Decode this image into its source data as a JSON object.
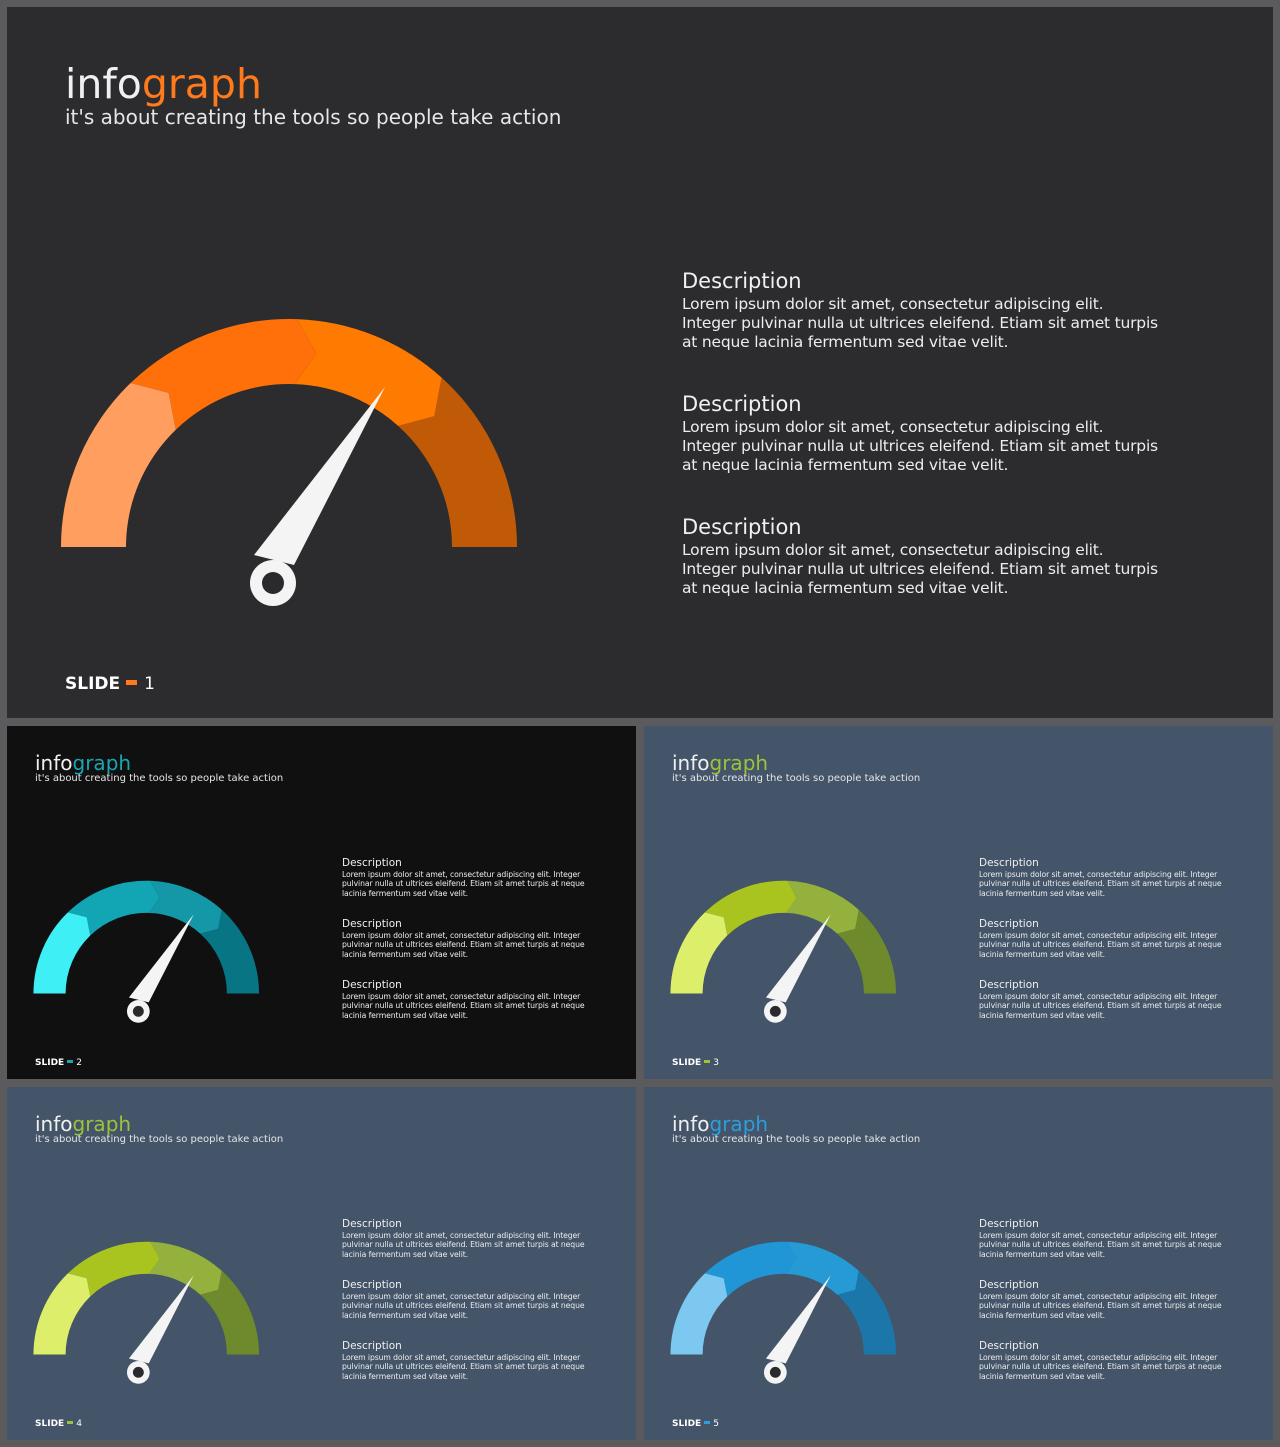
{
  "slides": [
    {
      "brand_prefix": "info",
      "brand_suffix": "graph",
      "tagline": "it's about creating the tools so people take action",
      "accent": "#ff7a1a",
      "gauge_colors": [
        "#ff9e5e",
        "#ff6f0a",
        "#ff7a00",
        "#c05a07"
      ],
      "descriptions": [
        {
          "title": "Description",
          "text": "Lorem ipsum dolor sit amet, consectetur adipiscing elit. Integer pulvinar nulla ut ultrices eleifend. Etiam sit amet turpis at neque lacinia fermentum sed vitae velit."
        },
        {
          "title": "Description",
          "text": "Lorem ipsum dolor sit amet, consectetur adipiscing elit. Integer pulvinar nulla ut ultrices eleifend. Etiam sit amet turpis at neque lacinia fermentum sed vitae velit."
        },
        {
          "title": "Description",
          "text": "Lorem ipsum dolor sit amet, consectetur adipiscing elit. Integer pulvinar nulla ut ultrices eleifend. Etiam sit amet turpis at neque lacinia fermentum sed vitae velit."
        }
      ],
      "footer_label": "SLIDE",
      "footer_number": "1"
    },
    {
      "brand_prefix": "info",
      "brand_suffix": "graph",
      "tagline": "it's about creating the tools so people take action",
      "accent": "#1aa6b0",
      "gauge_colors": [
        "#3ef0f5",
        "#12a6b4",
        "#1497a6",
        "#087585"
      ],
      "descriptions": [
        {
          "title": "Description",
          "text": "Lorem ipsum dolor sit amet, consectetur adipiscing elit. Integer pulvinar nulla ut ultrices eleifend. Etiam sit amet turpis at neque lacinia fermentum sed vitae velit."
        },
        {
          "title": "Description",
          "text": "Lorem ipsum dolor sit amet, consectetur adipiscing elit. Integer pulvinar nulla ut ultrices eleifend. Etiam sit amet turpis at neque lacinia fermentum sed vitae velit."
        },
        {
          "title": "Description",
          "text": "Lorem ipsum dolor sit amet, consectetur adipiscing elit. Integer pulvinar nulla ut ultrices eleifend. Etiam sit amet turpis at neque lacinia fermentum sed vitae velit."
        }
      ],
      "footer_label": "SLIDE",
      "footer_number": "2"
    },
    {
      "brand_prefix": "info",
      "brand_suffix": "graph",
      "tagline": "it's about creating the tools so people take action",
      "accent": "#9cc33a",
      "gauge_colors": [
        "#dcee6a",
        "#a9c41e",
        "#93b13c",
        "#6f8a2c"
      ],
      "descriptions": [
        {
          "title": "Description",
          "text": "Lorem ipsum dolor sit amet, consectetur adipiscing elit. Integer pulvinar nulla ut ultrices eleifend. Etiam sit amet turpis at neque lacinia fermentum sed vitae velit."
        },
        {
          "title": "Description",
          "text": "Lorem ipsum dolor sit amet, consectetur adipiscing elit. Integer pulvinar nulla ut ultrices eleifend. Etiam sit amet turpis at neque lacinia fermentum sed vitae velit."
        },
        {
          "title": "Description",
          "text": "Lorem ipsum dolor sit amet, consectetur adipiscing elit. Integer pulvinar nulla ut ultrices eleifend. Etiam sit amet turpis at neque lacinia fermentum sed vitae velit."
        }
      ],
      "footer_label": "SLIDE",
      "footer_number": "3"
    },
    {
      "brand_prefix": "info",
      "brand_suffix": "graph",
      "tagline": "it's about creating the tools so people take action",
      "accent": "#9cc33a",
      "gauge_colors": [
        "#dcee6a",
        "#a9c41e",
        "#93b13c",
        "#6f8a2c"
      ],
      "descriptions": [
        {
          "title": "Description",
          "text": "Lorem ipsum dolor sit amet, consectetur adipiscing elit. Integer pulvinar nulla ut ultrices eleifend. Etiam sit amet turpis at neque lacinia fermentum sed vitae velit."
        },
        {
          "title": "Description",
          "text": "Lorem ipsum dolor sit amet, consectetur adipiscing elit. Integer pulvinar nulla ut ultrices eleifend. Etiam sit amet turpis at neque lacinia fermentum sed vitae velit."
        },
        {
          "title": "Description",
          "text": "Lorem ipsum dolor sit amet, consectetur adipiscing elit. Integer pulvinar nulla ut ultrices eleifend. Etiam sit amet turpis at neque lacinia fermentum sed vitae velit."
        }
      ],
      "footer_label": "SLIDE",
      "footer_number": "4"
    },
    {
      "brand_prefix": "info",
      "brand_suffix": "graph",
      "tagline": "it's about creating the tools so people take action",
      "accent": "#2b9fdc",
      "gauge_colors": [
        "#7cc8f0",
        "#2196d6",
        "#259ad5",
        "#1b77aa"
      ],
      "descriptions": [
        {
          "title": "Description",
          "text": "Lorem ipsum dolor sit amet, consectetur adipiscing elit. Integer pulvinar nulla ut ultrices eleifend. Etiam sit amet turpis at neque lacinia fermentum sed vitae velit."
        },
        {
          "title": "Description",
          "text": "Lorem ipsum dolor sit amet, consectetur adipiscing elit. Integer pulvinar nulla ut ultrices eleifend. Etiam sit amet turpis at neque lacinia fermentum sed vitae velit."
        },
        {
          "title": "Description",
          "text": "Lorem ipsum dolor sit amet, consectetur adipiscing elit. Integer pulvinar nulla ut ultrices eleifend. Etiam sit amet turpis at neque lacinia fermentum sed vitae velit."
        }
      ],
      "footer_label": "SLIDE",
      "footer_number": "5"
    }
  ]
}
